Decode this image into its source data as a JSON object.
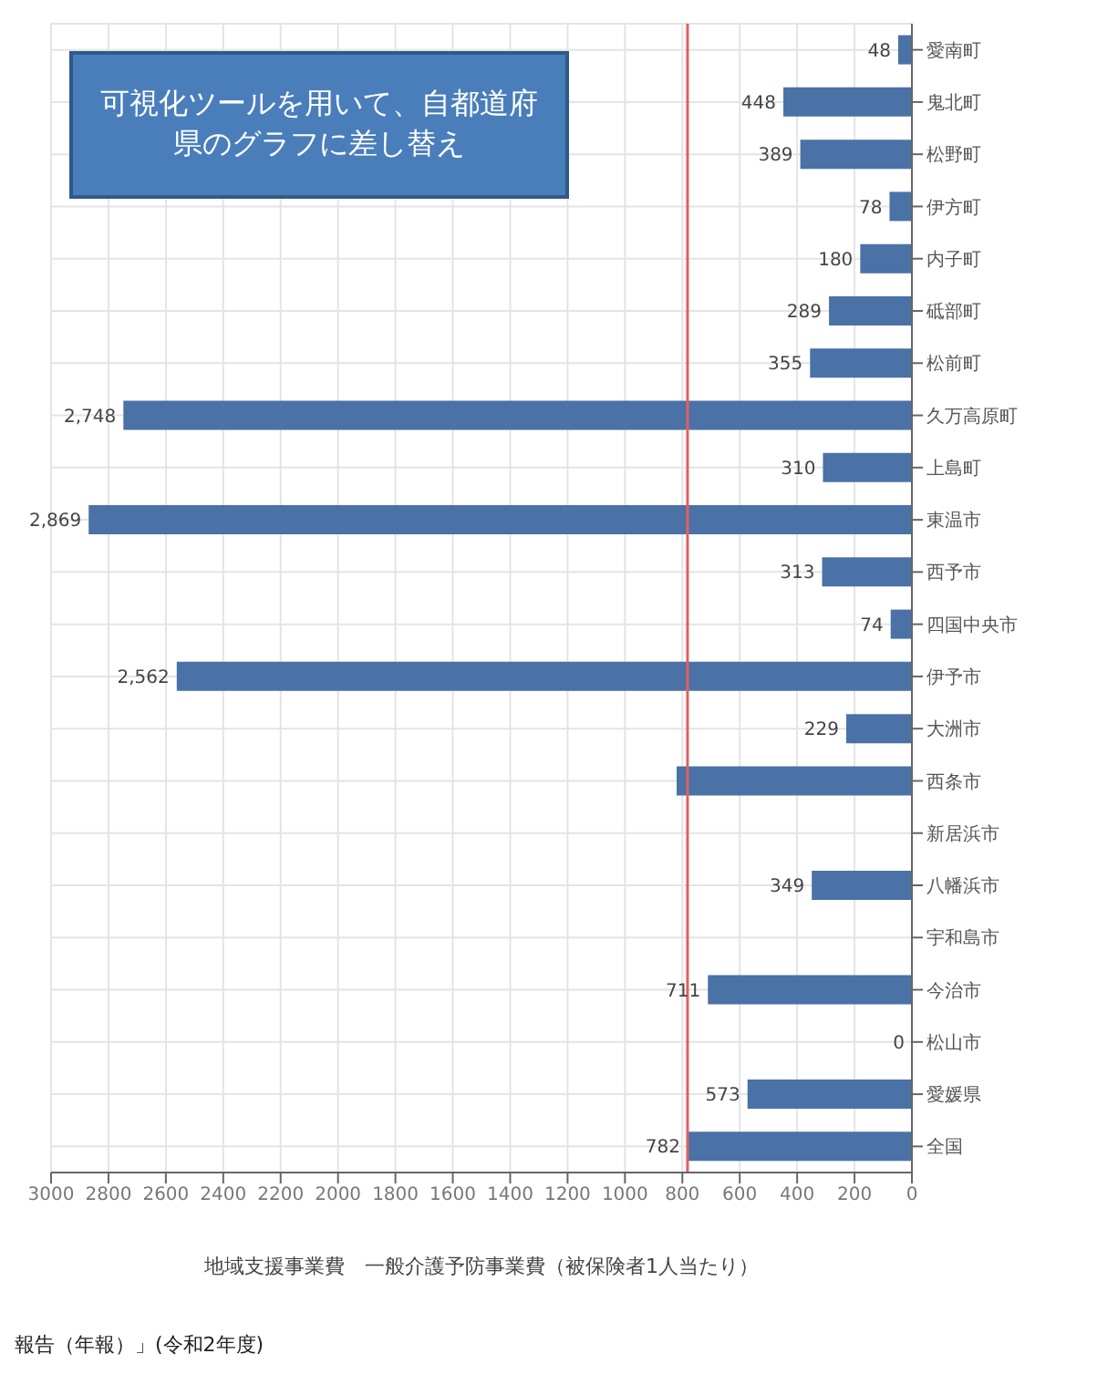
{
  "chart_data": {
    "type": "bar",
    "orientation": "horizontal",
    "xlabel": "地域支援事業費　一般介護予防事業費（被保険者1人当たり）",
    "categories": [
      "愛南町",
      "鬼北町",
      "松野町",
      "伊方町",
      "内子町",
      "砥部町",
      "松前町",
      "久万高原町",
      "上島町",
      "東温市",
      "西予市",
      "四国中央市",
      "伊予市",
      "大洲市",
      "西条市",
      "新居浜市",
      "八幡浜市",
      "宇和島市",
      "今治市",
      "松山市",
      "愛媛県",
      "全国"
    ],
    "values": [
      48,
      448,
      389,
      78,
      180,
      289,
      355,
      2748,
      310,
      2869,
      313,
      74,
      2562,
      229,
      820,
      null,
      349,
      null,
      711,
      0,
      573,
      782
    ],
    "value_labels": [
      "48",
      "448",
      "389",
      "78",
      "180",
      "289",
      "355",
      "2,748",
      "310",
      "2,869",
      "313",
      "74",
      "2,562",
      "229",
      null,
      null,
      "349",
      null,
      "711",
      "0",
      "573",
      "782"
    ],
    "color": "#4a72a6",
    "xlim": [
      3000,
      0
    ],
    "xticks": [
      0,
      200,
      400,
      600,
      800,
      1000,
      1200,
      1400,
      1600,
      1800,
      2000,
      2200,
      2400,
      2600,
      2800,
      3000
    ],
    "grid": true,
    "ref_lines": [
      {
        "axis": "x",
        "value": 782,
        "color": "#e06060"
      }
    ],
    "annotations": [
      "可視化ツールを用いて、自都道府県のグラフに差し替え",
      "報告（年報）」(令和2年度)"
    ]
  }
}
